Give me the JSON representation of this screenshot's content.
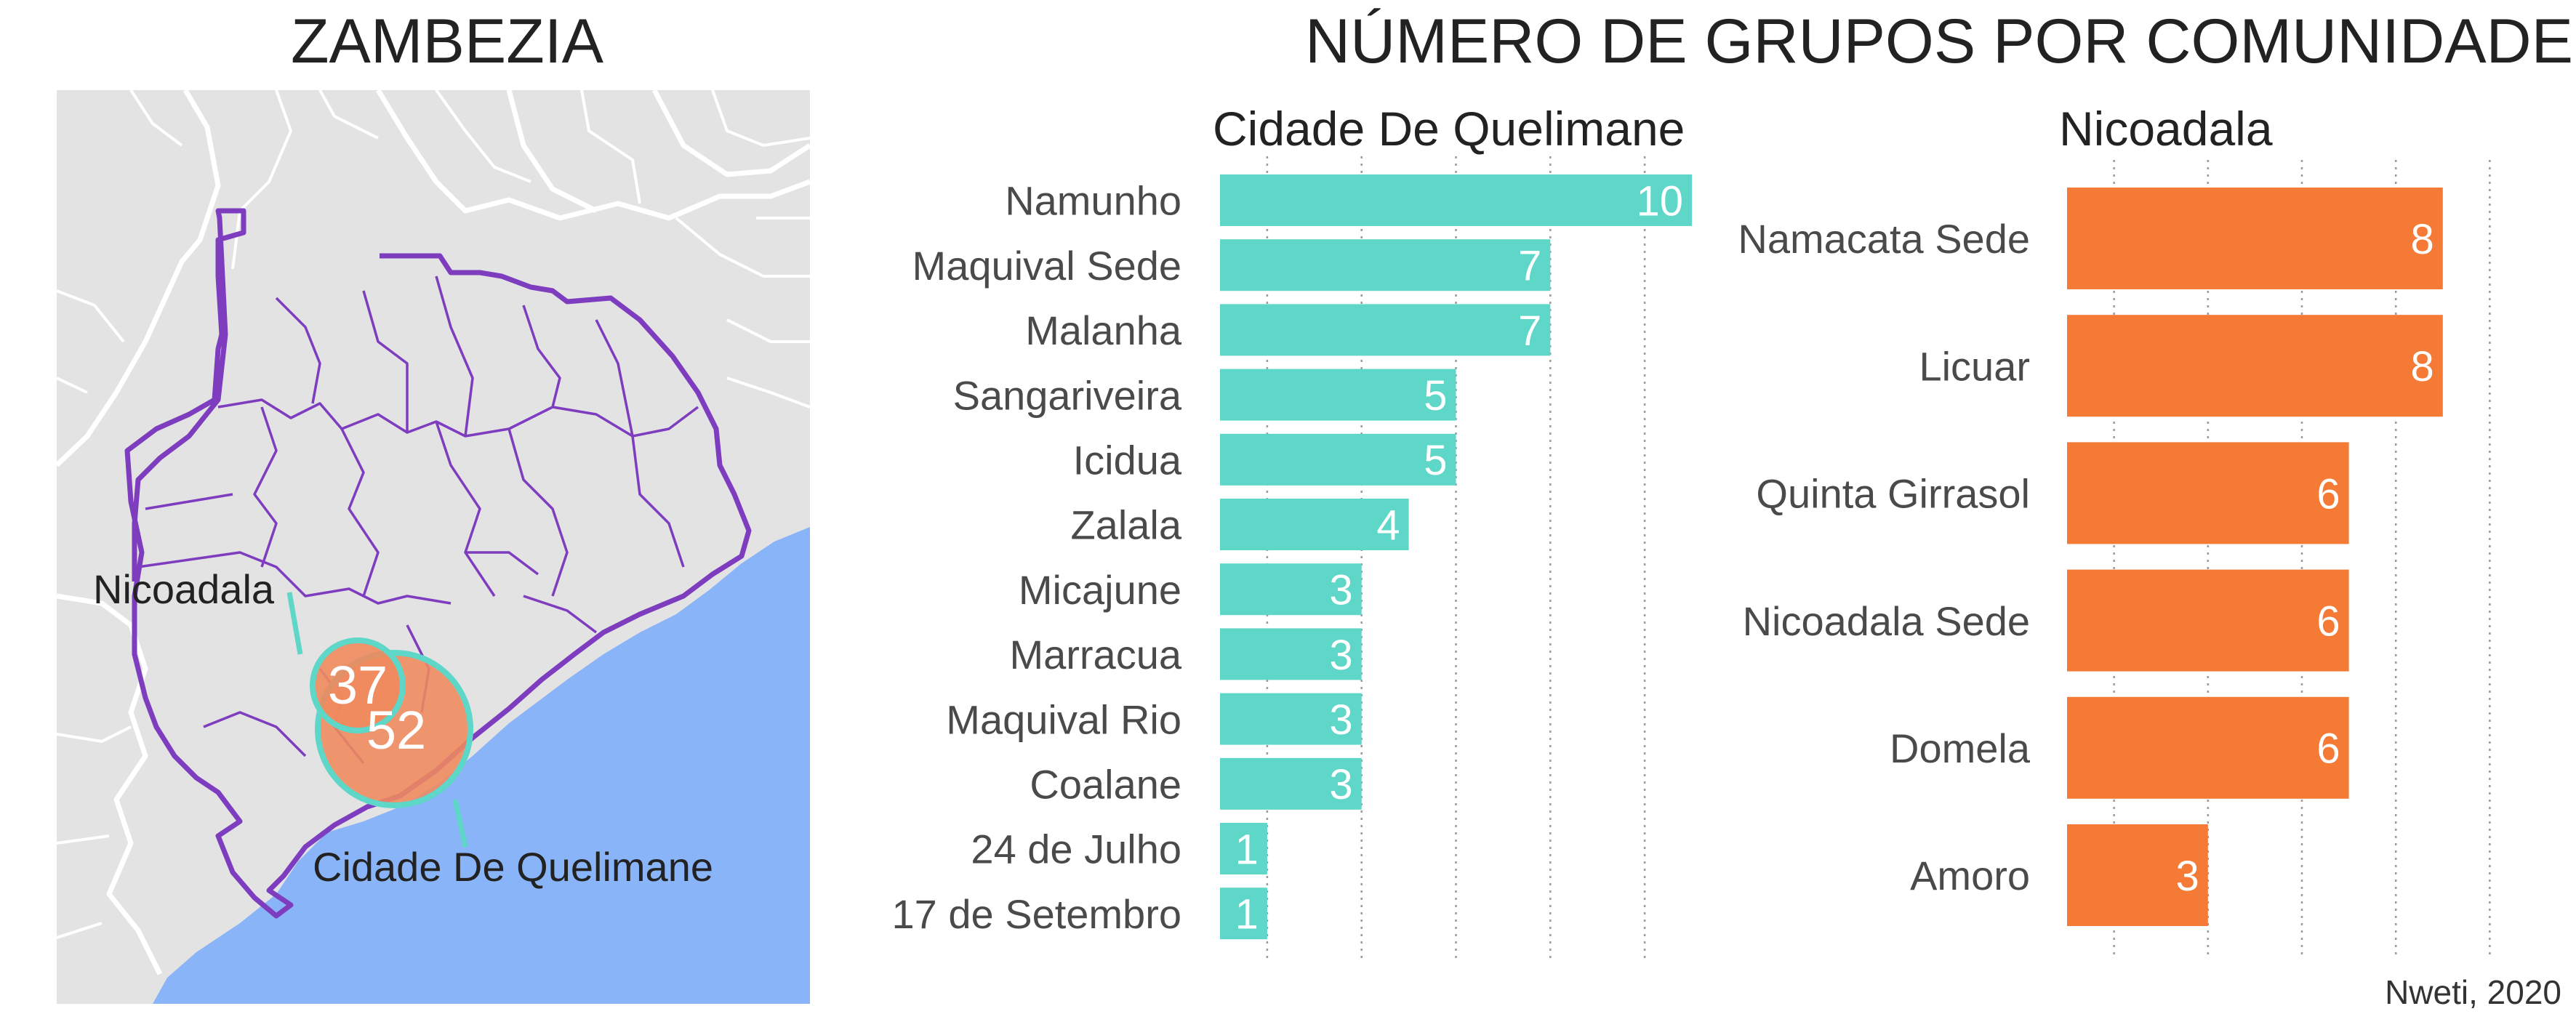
{
  "map": {
    "title": "ZAMBEZIA",
    "colors": {
      "land": "#e3e3e3",
      "sea": "#8ab4f8",
      "borders": "#ffffff",
      "province": "#7e3cbf",
      "bubble": "#f08a5d",
      "bubble_outline": "#5ed6c8"
    },
    "bubbles": [
      {
        "label": "Nicoadala",
        "value": 37
      },
      {
        "label": "Cidade De Quelimane",
        "value": 52
      }
    ]
  },
  "title": "NÚMERO DE GRUPOS POR COMUNIDADE",
  "source": "Nweti, 2020",
  "chart_data": [
    {
      "type": "bar",
      "orientation": "horizontal",
      "title": "Cidade De Quelimane",
      "color": "#5ed6c8",
      "categories": [
        "Namunho",
        "Maquival Sede",
        "Malanha",
        "Sangariveira",
        "Icidua",
        "Zalala",
        "Micajune",
        "Marracua",
        "Maquival Rio",
        "Coalane",
        "24 de Julho",
        "17 de Setembro"
      ],
      "values": [
        10,
        7,
        7,
        5,
        5,
        4,
        3,
        3,
        3,
        3,
        1,
        1
      ],
      "xlim": [
        0,
        10
      ],
      "grid": true,
      "gridlines": [
        1,
        3,
        5,
        7,
        9
      ]
    },
    {
      "type": "bar",
      "orientation": "horizontal",
      "title": "Nicoadala",
      "color": "#f47a35",
      "categories": [
        "Namacata Sede",
        "Licuar",
        "Quinta Girrasol",
        "Nicoadala Sede",
        "Domela",
        "Amoro"
      ],
      "values": [
        8,
        8,
        6,
        6,
        6,
        3
      ],
      "xlim": [
        0,
        9
      ],
      "grid": true,
      "gridlines": [
        1,
        3,
        5,
        7,
        9
      ]
    }
  ]
}
